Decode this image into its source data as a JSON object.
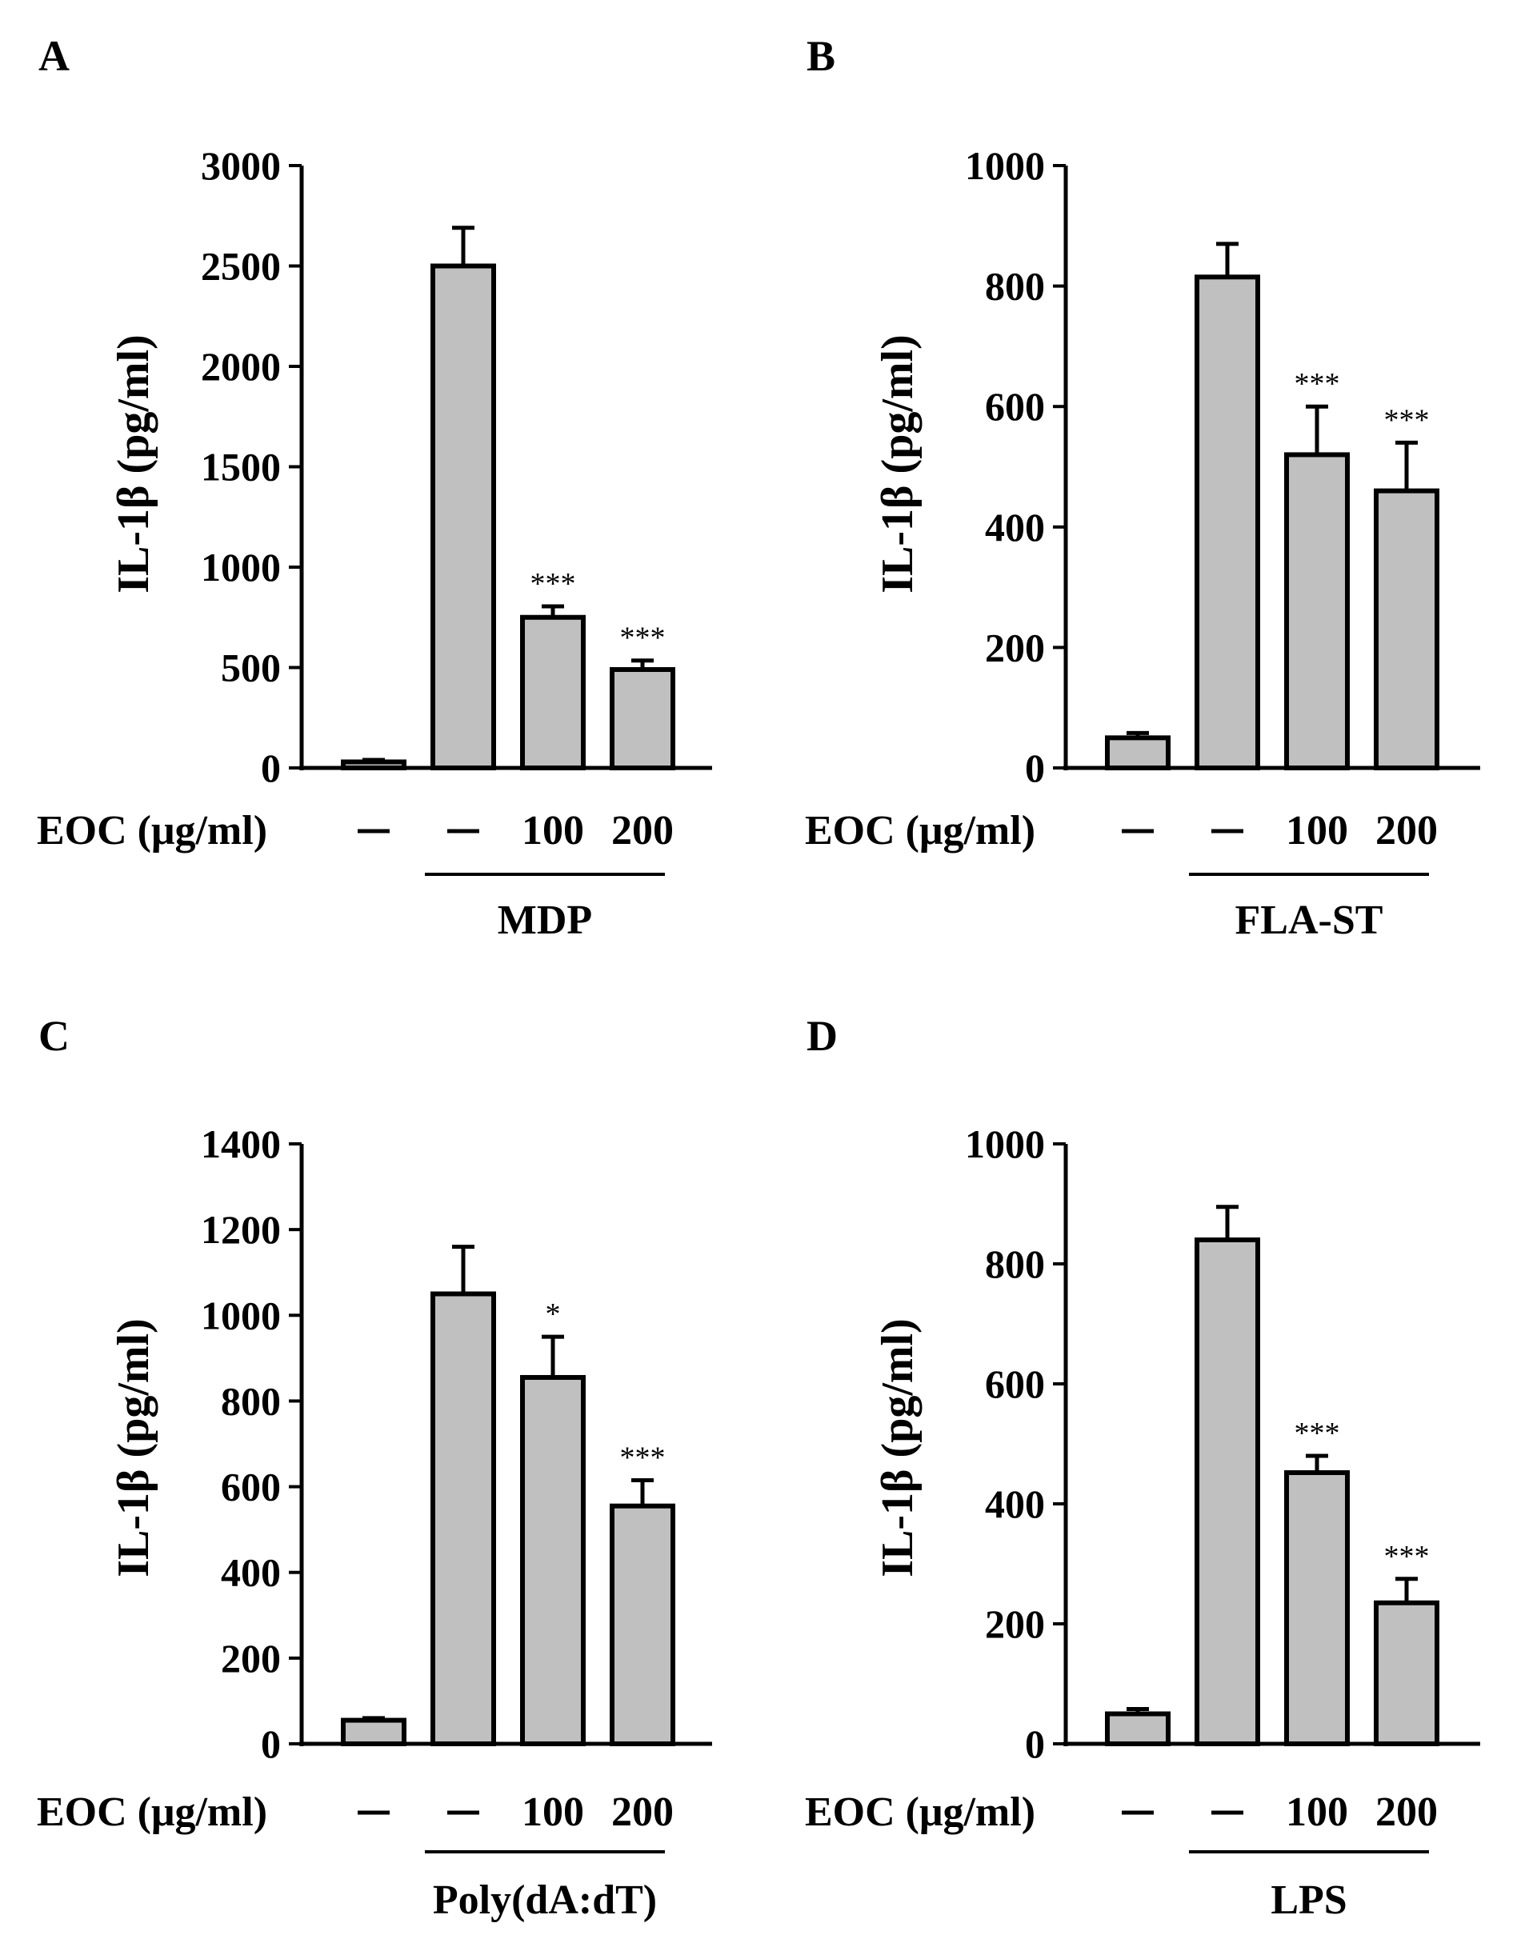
{
  "chart_data": [
    {
      "panel": "A",
      "type": "bar",
      "ylabel": "IL-1β (pg/ml)",
      "ylim": [
        0,
        3000
      ],
      "yticks": [
        0,
        500,
        1000,
        1500,
        2000,
        2500,
        3000
      ],
      "condition_label": "EOC (μg/ml)",
      "categories": [
        "—",
        "—",
        "100",
        "200"
      ],
      "values": [
        30,
        2500,
        750,
        490
      ],
      "errors": [
        10,
        190,
        55,
        45
      ],
      "significance": [
        "",
        "",
        "***",
        "***"
      ],
      "stimulus": "MDP",
      "stimulus_span": [
        1,
        3
      ]
    },
    {
      "panel": "B",
      "type": "bar",
      "ylabel": "IL-1β (pg/ml)",
      "ylim": [
        0,
        1000
      ],
      "yticks": [
        0,
        200,
        400,
        600,
        800,
        1000
      ],
      "condition_label": "EOC (μg/ml)",
      "categories": [
        "—",
        "—",
        "100",
        "200"
      ],
      "values": [
        50,
        815,
        520,
        460
      ],
      "errors": [
        8,
        55,
        80,
        80
      ],
      "significance": [
        "",
        "",
        "***",
        "***"
      ],
      "stimulus": "FLA-ST",
      "stimulus_span": [
        1,
        3
      ]
    },
    {
      "panel": "C",
      "type": "bar",
      "ylabel": "IL-1β (pg/ml)",
      "ylim": [
        0,
        1400
      ],
      "yticks": [
        0,
        200,
        400,
        600,
        800,
        1000,
        1200,
        1400
      ],
      "condition_label": "EOC (μg/ml)",
      "categories": [
        "—",
        "—",
        "100",
        "200"
      ],
      "values": [
        55,
        1050,
        855,
        555
      ],
      "errors": [
        5,
        110,
        95,
        60
      ],
      "significance": [
        "",
        "",
        "*",
        "***"
      ],
      "stimulus": "Poly(dA:dT)",
      "stimulus_span": [
        1,
        3
      ]
    },
    {
      "panel": "D",
      "type": "bar",
      "ylabel": "IL-1β (pg/ml)",
      "ylim": [
        0,
        1000
      ],
      "yticks": [
        0,
        200,
        400,
        600,
        800,
        1000
      ],
      "condition_label": "EOC (μg/ml)",
      "categories": [
        "—",
        "—",
        "100",
        "200"
      ],
      "values": [
        50,
        840,
        452,
        235
      ],
      "errors": [
        8,
        55,
        28,
        40
      ],
      "significance": [
        "",
        "",
        "***",
        "***"
      ],
      "stimulus": "LPS",
      "stimulus_span": [
        1,
        3
      ]
    }
  ],
  "colors": {
    "bar_fill": "#c0c0c0",
    "stroke": "#000000",
    "background": "#ffffff"
  }
}
